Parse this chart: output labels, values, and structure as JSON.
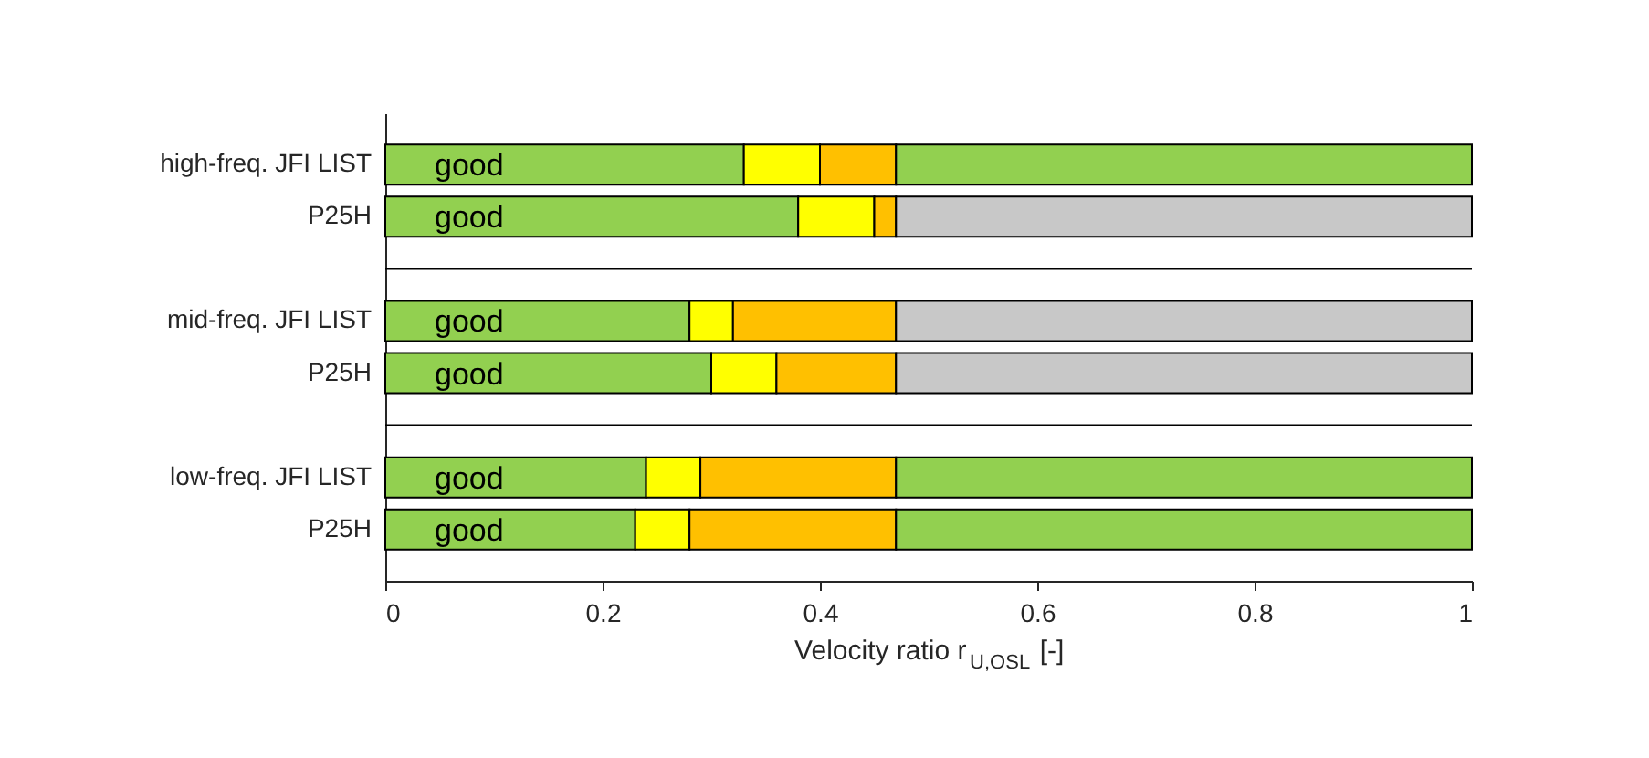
{
  "chart_data": {
    "type": "bar",
    "orientation": "horizontal",
    "stacked": true,
    "xlabel": "Velocity ratio r$_{U,OSL}$ [-]",
    "categories": [
      "high-freq. JFI LIST",
      "P25H",
      null,
      "mid-freq. JFI LIST",
      "P25H",
      null,
      "low-freq. JFI LIST",
      "P25H"
    ],
    "series": [
      {
        "name": "good",
        "color": "#92d050",
        "values": [
          0.33,
          0.38,
          null,
          0.28,
          0.3,
          null,
          0.24,
          0.23
        ]
      },
      {
        "color": "#ffff00",
        "values": [
          0.07,
          0.07,
          null,
          0.04,
          0.06,
          null,
          0.05,
          0.05
        ]
      },
      {
        "color": "#ffc000",
        "values": [
          0.07,
          0.02,
          null,
          0.15,
          0.11,
          null,
          0.18,
          0.19
        ]
      },
      {
        "colors": [
          "#92d050",
          "#c8c8c8",
          null,
          "#c8c8c8",
          "#c8c8c8",
          null,
          "#92d050",
          "#92d050"
        ],
        "values": [
          0.53,
          0.53,
          null,
          0.53,
          0.53,
          null,
          0.53,
          0.53
        ]
      }
    ],
    "xlim": [
      0,
      1
    ],
    "xticks": [
      0,
      0.2,
      0.4,
      0.6,
      0.8,
      1
    ],
    "grid": false
  }
}
